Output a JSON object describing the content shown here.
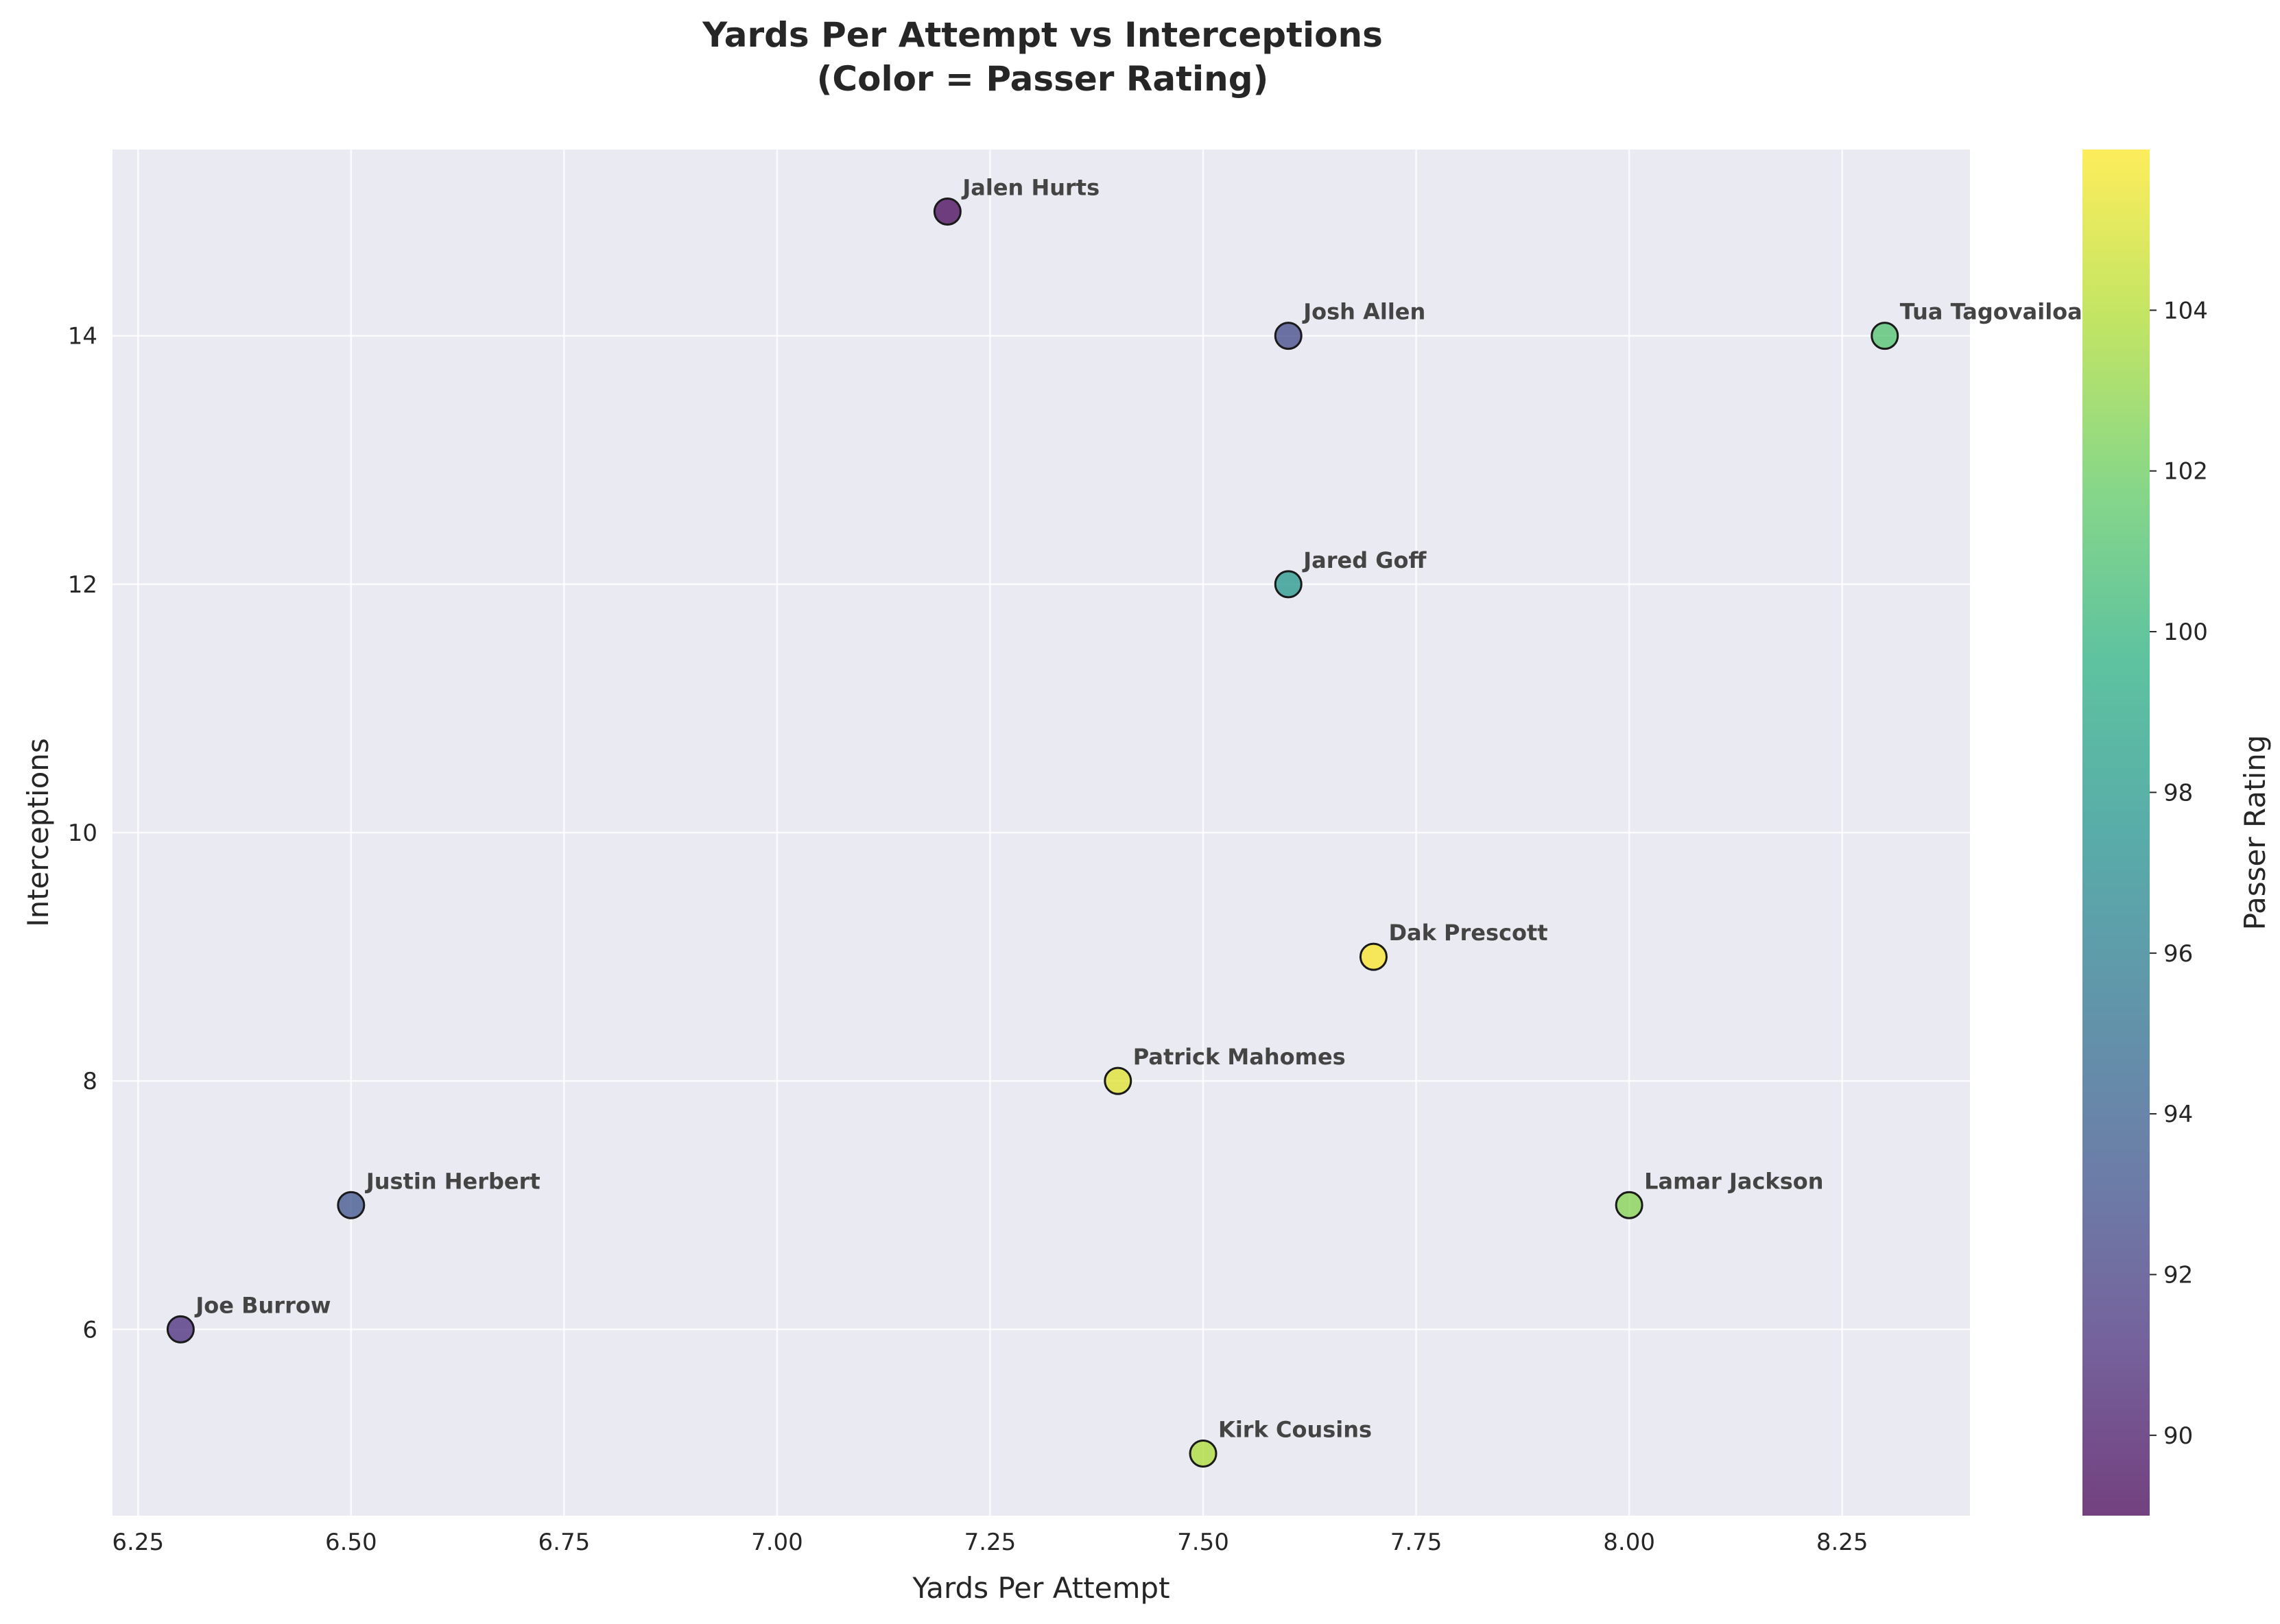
{
  "chart_data": {
    "type": "scatter",
    "title_line1": "Yards Per Attempt vs Interceptions",
    "title_line2": "(Color = Passer Rating)",
    "xlabel": "Yards Per Attempt",
    "ylabel": "Interceptions",
    "colorbar_label": "Passer Rating",
    "xlim": [
      6.22,
      8.4
    ],
    "ylim": [
      4.5,
      15.5
    ],
    "xticks": [
      "6.25",
      "6.50",
      "6.75",
      "7.00",
      "7.25",
      "7.50",
      "7.75",
      "8.00",
      "8.25"
    ],
    "yticks": [
      "6",
      "8",
      "10",
      "12",
      "14"
    ],
    "color_range": [
      89.0,
      106.0
    ],
    "colorbar_ticks": [
      "90",
      "92",
      "94",
      "96",
      "98",
      "100",
      "102",
      "104"
    ],
    "colormap": "viridis",
    "grid": true,
    "points": [
      {
        "name": "Patrick Mahomes",
        "x": 7.4,
        "y": 8,
        "rating": 105.2
      },
      {
        "name": "Josh Allen",
        "x": 7.6,
        "y": 14,
        "rating": 92.6
      },
      {
        "name": "Jalen Hurts",
        "x": 7.2,
        "y": 15,
        "rating": 89.1
      },
      {
        "name": "Lamar Jackson",
        "x": 8.0,
        "y": 7,
        "rating": 102.7
      },
      {
        "name": "Joe Burrow",
        "x": 6.3,
        "y": 6,
        "rating": 91.0
      },
      {
        "name": "Justin Herbert",
        "x": 6.5,
        "y": 7,
        "rating": 93.2
      },
      {
        "name": "Tua Tagovailoa",
        "x": 8.3,
        "y": 14,
        "rating": 101.1
      },
      {
        "name": "Dak Prescott",
        "x": 7.7,
        "y": 9,
        "rating": 105.9
      },
      {
        "name": "Jared Goff",
        "x": 7.6,
        "y": 12,
        "rating": 97.9
      },
      {
        "name": "Kirk Cousins",
        "x": 7.5,
        "y": 5,
        "rating": 103.8
      }
    ]
  },
  "colors": {
    "plot_background": "#eaeaf2",
    "grid": "#ffffff",
    "marker_edge": "#1a1a1a"
  }
}
